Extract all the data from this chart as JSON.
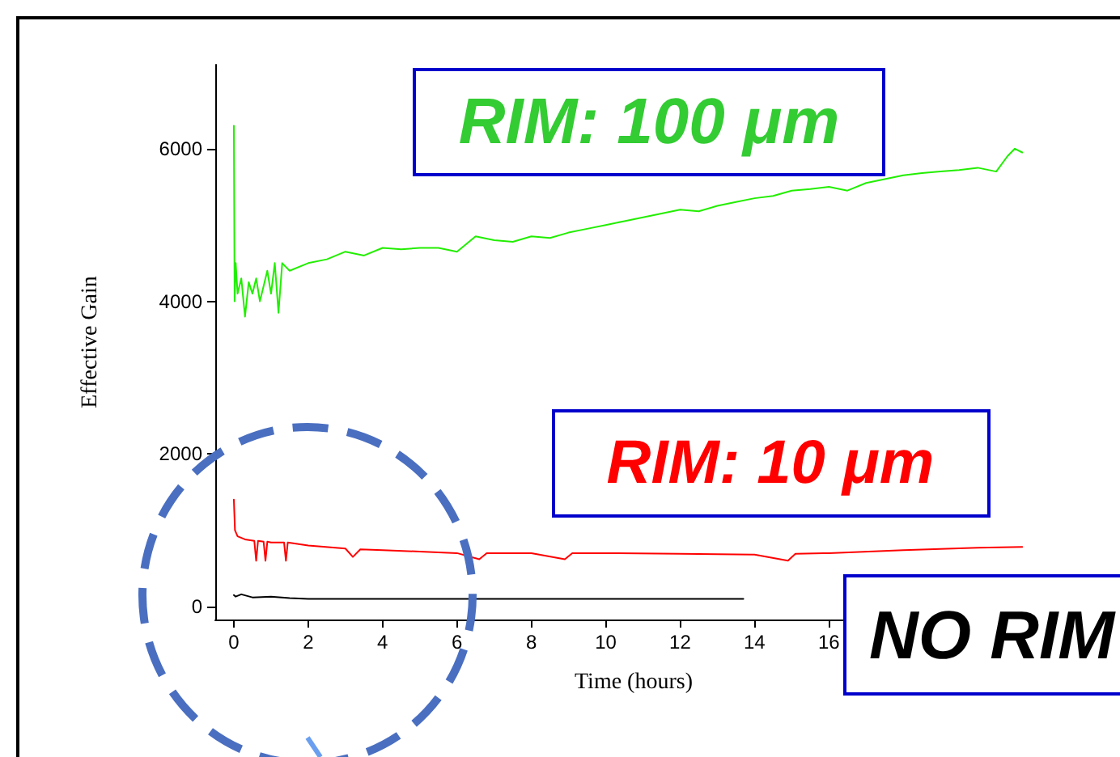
{
  "chart_data": {
    "type": "line",
    "xlabel": "Time (hours)",
    "ylabel": "Effective Gain",
    "xlim": [
      -0.5,
      22
    ],
    "ylim": [
      -170,
      7100
    ],
    "xticks": [
      0,
      2,
      4,
      6,
      8,
      10,
      12,
      14,
      16
    ],
    "yticks": [
      0,
      2000,
      4000,
      6000
    ],
    "grid": false,
    "marker": "none",
    "line_style": "solid",
    "series": [
      {
        "color": "#22ee00",
        "x": [
          0,
          0.02,
          0.05,
          0.1,
          0.2,
          0.3,
          0.4,
          0.5,
          0.6,
          0.7,
          0.8,
          0.9,
          1.0,
          1.1,
          1.2,
          1.3,
          1.5,
          2,
          2.5,
          3,
          3.5,
          4,
          4.5,
          5,
          5.5,
          6,
          6.5,
          7,
          7.5,
          8,
          8.5,
          9,
          9.5,
          10,
          10.5,
          11,
          11.5,
          12,
          12.5,
          13,
          13.5,
          14,
          14.5,
          15,
          15.5,
          16,
          16.5,
          17,
          17.5,
          18,
          18.5,
          19,
          19.5,
          20,
          20.5,
          20.8,
          21,
          21.2
        ],
        "values": [
          6300,
          4000,
          4500,
          4100,
          4300,
          3800,
          4250,
          4100,
          4300,
          4000,
          4200,
          4400,
          4100,
          4500,
          3850,
          4500,
          4400,
          4500,
          4550,
          4650,
          4600,
          4700,
          4680,
          4700,
          4700,
          4650,
          4850,
          4800,
          4780,
          4850,
          4830,
          4900,
          4950,
          5000,
          5050,
          5100,
          5150,
          5200,
          5180,
          5250,
          5300,
          5350,
          5380,
          5450,
          5470,
          5500,
          5450,
          5550,
          5600,
          5650,
          5680,
          5700,
          5720,
          5750,
          5700,
          5900,
          6000,
          5950
        ]
      },
      {
        "color": "#ff0000",
        "x": [
          0,
          0.03,
          0.1,
          0.3,
          0.55,
          0.6,
          0.65,
          0.8,
          0.85,
          0.9,
          1.0,
          1.35,
          1.4,
          1.45,
          2,
          3,
          3.2,
          3.4,
          4,
          5,
          6,
          6.6,
          6.8,
          8,
          8.9,
          9.1,
          10,
          12,
          14,
          14.9,
          15.1,
          16,
          18,
          20,
          21.2
        ],
        "values": [
          1400,
          1000,
          920,
          880,
          860,
          600,
          860,
          850,
          600,
          850,
          840,
          840,
          600,
          840,
          800,
          760,
          650,
          750,
          740,
          720,
          700,
          620,
          700,
          700,
          620,
          700,
          700,
          690,
          680,
          600,
          690,
          700,
          740,
          770,
          780
        ]
      },
      {
        "color": "#000000",
        "x": [
          0,
          0.05,
          0.2,
          0.5,
          1,
          1.5,
          2,
          4,
          6,
          8,
          10,
          12,
          13.7
        ],
        "values": [
          150,
          130,
          160,
          120,
          130,
          110,
          100,
          100,
          100,
          100,
          100,
          100,
          100
        ]
      }
    ],
    "annotations": [
      "RIM: 100 μm",
      "RIM: 10 μm",
      "NO RIM"
    ]
  }
}
